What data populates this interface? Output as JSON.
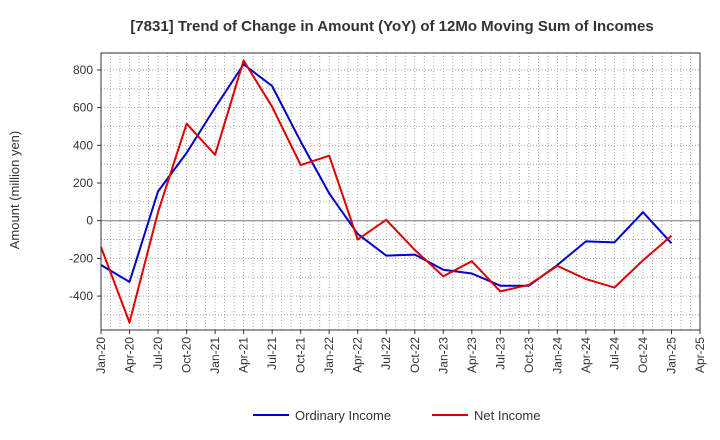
{
  "chart_data": {
    "type": "line",
    "title": "[7831]  Trend of Change in Amount (YoY) of 12Mo Moving Sum of Incomes",
    "xlabel": "",
    "ylabel": "Amount (million yen)",
    "ylim": [
      -580,
      890
    ],
    "yticks": [
      -400,
      -200,
      0,
      200,
      400,
      600,
      800
    ],
    "grid": true,
    "legend_position": "bottom-center",
    "x_tick_labels": [
      "Jan-20",
      "Apr-20",
      "Jul-20",
      "Oct-20",
      "Jan-21",
      "Apr-21",
      "Jul-21",
      "Oct-21",
      "Jan-22",
      "Apr-22",
      "Jul-22",
      "Oct-22",
      "Jan-23",
      "Apr-23",
      "Jul-23",
      "Oct-23",
      "Jan-24",
      "Apr-24",
      "Jul-24",
      "Oct-24",
      "Jan-25",
      "Apr-25"
    ],
    "series": [
      {
        "name": "Ordinary Income",
        "color": "#0000cc",
        "values": [
          -235,
          -325,
          155,
          360,
          600,
          830,
          715,
          420,
          145,
          -70,
          -185,
          -180,
          -260,
          -280,
          -345,
          -345,
          -235,
          -110,
          -115,
          45,
          -120
        ]
      },
      {
        "name": "Net Income",
        "color": "#dd0000",
        "values": [
          -140,
          -540,
          45,
          515,
          350,
          850,
          605,
          295,
          345,
          -100,
          5,
          -155,
          -295,
          -215,
          -375,
          -340,
          -240,
          -310,
          -355,
          -210,
          -80
        ]
      }
    ]
  }
}
